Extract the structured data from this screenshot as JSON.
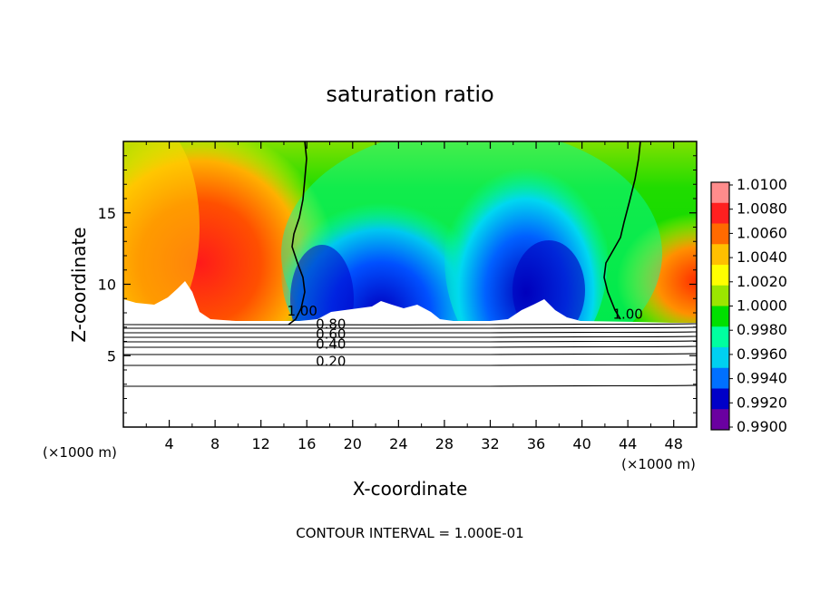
{
  "chart_data": {
    "type": "heatmap",
    "title": "saturation ratio",
    "xlabel": "X-coordinate",
    "ylabel": "Z-coordinate",
    "x_unit_label_left": "(×1000 m)",
    "x_unit_label_right": "(×1000 m)",
    "footer": "CONTOUR INTERVAL = 1.000E-01",
    "xlim": [
      0,
      50
    ],
    "ylim": [
      0,
      20
    ],
    "x_ticks": [
      4,
      8,
      12,
      16,
      20,
      24,
      28,
      32,
      36,
      40,
      44,
      48
    ],
    "x_tick_labels": [
      "4",
      "8",
      "12",
      "16",
      "20",
      "24",
      "28",
      "32",
      "36",
      "40",
      "44",
      "48"
    ],
    "y_ticks": [
      5,
      10,
      15
    ],
    "y_tick_labels": [
      "5",
      "10",
      "15"
    ],
    "colorbar": {
      "min": 0.99,
      "max": 1.01,
      "labels": [
        "1.0100",
        "1.0080",
        "1.0060",
        "1.0040",
        "1.0020",
        "1.0000",
        "0.9980",
        "0.9960",
        "0.9940",
        "0.9920",
        "0.9900"
      ],
      "colors": [
        "#ff8c8c",
        "#ff2020",
        "#ff6a00",
        "#ffc000",
        "#ffff00",
        "#9be600",
        "#00e000",
        "#00ffa0",
        "#00d0f0",
        "#0070ff",
        "#0000c8",
        "#6a00a0"
      ]
    },
    "contour_labels": [
      {
        "text": "1.00",
        "x": 15.6,
        "z": 7.8
      },
      {
        "text": "0.80",
        "x": 18.1,
        "z": 6.9
      },
      {
        "text": "0.60",
        "x": 18.1,
        "z": 6.2
      },
      {
        "text": "0.40",
        "x": 18.1,
        "z": 5.5
      },
      {
        "text": "0.20",
        "x": 18.1,
        "z": 4.3
      },
      {
        "text": "1.00",
        "x": 44.0,
        "z": 7.6
      }
    ]
  }
}
